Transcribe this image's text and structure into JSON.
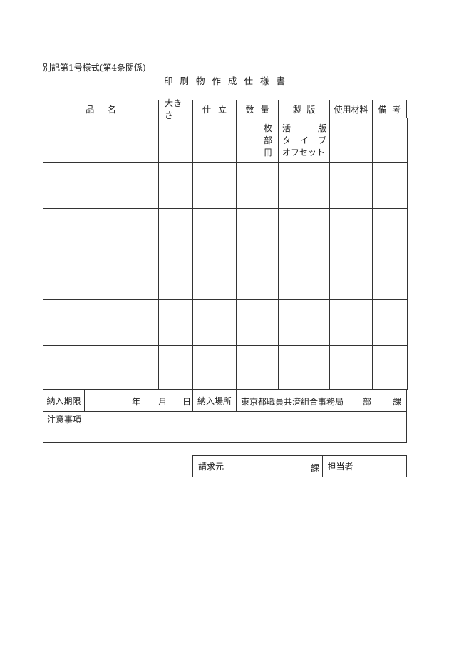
{
  "form_label": "別記第1号様式(第4条関係)",
  "title": "印 刷 物 作 成 仕 様 書",
  "table": {
    "headers": {
      "item_name": [
        "品",
        "名"
      ],
      "size": "大きさ",
      "binding": [
        "仕",
        "立"
      ],
      "quantity": [
        "数",
        "量"
      ],
      "plate": [
        "製",
        "版"
      ],
      "materials": "使用材料",
      "remarks": [
        "備",
        "考"
      ]
    },
    "quantity_units": [
      "枚",
      "部",
      "冊"
    ],
    "plate_options": [
      [
        "活",
        "版"
      ],
      [
        "タ",
        "イ",
        "プ"
      ],
      "オフセット"
    ]
  },
  "delivery": {
    "deadline_label": "納入期限",
    "date_units": [
      "年",
      "月",
      "日"
    ],
    "place_label": "納入場所",
    "place_value": "東京都職員共済組合事務局",
    "place_units": [
      "部",
      "課"
    ]
  },
  "notes_label": "注意事項",
  "billing": {
    "requester_label": "請求元",
    "section_unit": "課",
    "person_label": "担当者"
  }
}
